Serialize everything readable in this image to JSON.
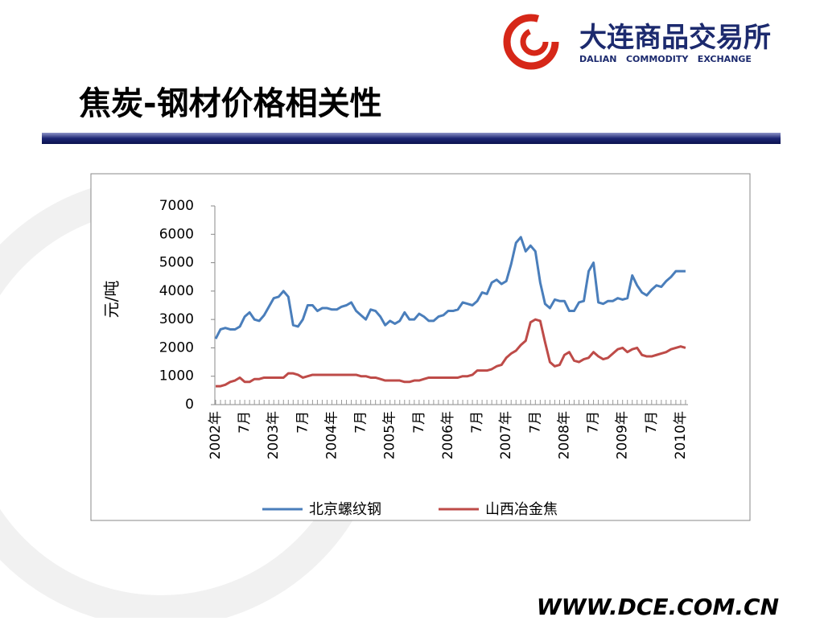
{
  "slide": {
    "title": "焦炭-钢材价格相关性",
    "logo_cn": "大连商品交易所",
    "logo_en": "DALIAN   COMMODITY   EXCHANGE",
    "footer": "WWW.DCE.COM.CN"
  },
  "chart_data": {
    "type": "line",
    "y_label": "元/吨",
    "categories": [
      "2002年",
      null,
      null,
      null,
      null,
      null,
      "7月",
      null,
      null,
      null,
      null,
      null,
      "2003年",
      null,
      null,
      null,
      null,
      null,
      "7月",
      null,
      null,
      null,
      null,
      null,
      "2004年",
      null,
      null,
      null,
      null,
      null,
      "7月",
      null,
      null,
      null,
      null,
      null,
      "2005年",
      null,
      null,
      null,
      null,
      null,
      "7月",
      null,
      null,
      null,
      null,
      null,
      "2006年",
      null,
      null,
      null,
      null,
      null,
      "7月",
      null,
      null,
      null,
      null,
      null,
      "2007年",
      null,
      null,
      null,
      null,
      null,
      "7月",
      null,
      null,
      null,
      null,
      null,
      "2008年",
      null,
      null,
      null,
      null,
      null,
      "7月",
      null,
      null,
      null,
      null,
      null,
      "2009年",
      null,
      null,
      null,
      null,
      null,
      "7月",
      null,
      null,
      null,
      null,
      null,
      "2010年",
      null
    ],
    "series": [
      {
        "name": "北京螺纹钢",
        "color": "#4a7ebb",
        "values": [
          2320,
          2650,
          2700,
          2650,
          2650,
          2750,
          3100,
          3250,
          3000,
          2950,
          3150,
          3450,
          3750,
          3800,
          4000,
          3800,
          2800,
          2750,
          3000,
          3500,
          3500,
          3300,
          3400,
          3400,
          3350,
          3350,
          3450,
          3500,
          3600,
          3300,
          3150,
          3000,
          3350,
          3300,
          3100,
          2800,
          2950,
          2850,
          2950,
          3250,
          3000,
          3000,
          3200,
          3100,
          2950,
          2950,
          3100,
          3150,
          3300,
          3300,
          3350,
          3600,
          3550,
          3500,
          3650,
          3950,
          3900,
          4300,
          4400,
          4250,
          4350,
          4950,
          5700,
          5900,
          5400,
          5600,
          5400,
          4300,
          3550,
          3400,
          3700,
          3650,
          3650,
          3300,
          3300,
          3600,
          3650,
          4700,
          5000,
          3600,
          3550,
          3650,
          3650,
          3750,
          3700,
          3750,
          4550,
          4200,
          3950,
          3850,
          4050,
          4200,
          4150,
          4350,
          4500,
          4700,
          4700,
          4700
        ]
      },
      {
        "name": "山西冶金焦",
        "color": "#be4b48",
        "values": [
          650,
          650,
          700,
          800,
          850,
          950,
          800,
          800,
          900,
          900,
          950,
          950,
          950,
          950,
          950,
          1100,
          1100,
          1050,
          950,
          1000,
          1050,
          1050,
          1050,
          1050,
          1050,
          1050,
          1050,
          1050,
          1050,
          1050,
          1000,
          1000,
          950,
          950,
          900,
          850,
          850,
          850,
          850,
          800,
          800,
          850,
          850,
          900,
          950,
          950,
          950,
          950,
          950,
          950,
          950,
          1000,
          1000,
          1050,
          1200,
          1200,
          1200,
          1250,
          1350,
          1400,
          1650,
          1800,
          1900,
          2100,
          2250,
          2900,
          3000,
          2950,
          2200,
          1500,
          1350,
          1400,
          1750,
          1850,
          1550,
          1500,
          1600,
          1650,
          1850,
          1700,
          1600,
          1650,
          1800,
          1950,
          2000,
          1850,
          1950,
          2000,
          1750,
          1700,
          1700,
          1750,
          1800,
          1850,
          1950,
          2000,
          2050,
          2000
        ]
      }
    ],
    "ylim": [
      0,
      7000
    ],
    "yticks": [
      0,
      1000,
      2000,
      3000,
      4000,
      5000,
      6000,
      7000
    ],
    "legend": "bottom"
  }
}
